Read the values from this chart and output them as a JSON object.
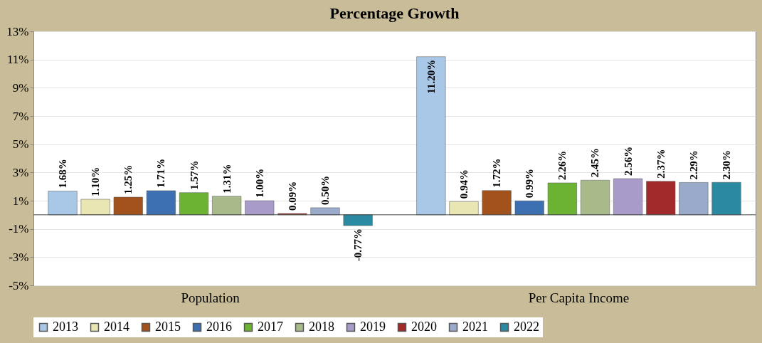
{
  "chart_data": {
    "type": "bar",
    "title": "Percentage Growth",
    "categories": [
      "Population",
      "Per Capita Income"
    ],
    "series": [
      {
        "name": "2013",
        "color": "#a9c7e6",
        "values": [
          1.68,
          11.2
        ],
        "value_labels": [
          "1.68%",
          "11.20%"
        ]
      },
      {
        "name": "2014",
        "color": "#e9e6b4",
        "values": [
          1.1,
          0.94
        ],
        "value_labels": [
          "1.10%",
          "0.94%"
        ]
      },
      {
        "name": "2015",
        "color": "#a4521c",
        "values": [
          1.25,
          1.72
        ],
        "value_labels": [
          "1.25%",
          "1.72%"
        ]
      },
      {
        "name": "2016",
        "color": "#3d6fb3",
        "values": [
          1.71,
          0.99
        ],
        "value_labels": [
          "1.71%",
          "0.99%"
        ]
      },
      {
        "name": "2017",
        "color": "#6cb233",
        "values": [
          1.57,
          2.26
        ],
        "value_labels": [
          "1.57%",
          "2.26%"
        ]
      },
      {
        "name": "2018",
        "color": "#a9ba8a",
        "values": [
          1.31,
          2.45
        ],
        "value_labels": [
          "1.31%",
          "2.45%"
        ]
      },
      {
        "name": "2019",
        "color": "#a99bc9",
        "values": [
          1.0,
          2.56
        ],
        "value_labels": [
          "1.00%",
          "2.56%"
        ]
      },
      {
        "name": "2020",
        "color": "#a22a2a",
        "values": [
          0.09,
          2.37
        ],
        "value_labels": [
          "0.09%",
          "2.37%"
        ]
      },
      {
        "name": "2021",
        "color": "#9aaacb",
        "values": [
          0.5,
          2.29
        ],
        "value_labels": [
          "0.50%",
          "2.29%"
        ]
      },
      {
        "name": "2022",
        "color": "#2a8aa2",
        "values": [
          -0.77,
          2.3
        ],
        "value_labels": [
          "-0.77%",
          "2.30%"
        ]
      }
    ],
    "ylim": [
      -5,
      13
    ],
    "yticks": [
      {
        "value": -5,
        "label": "-5%"
      },
      {
        "value": -3,
        "label": "-3%"
      },
      {
        "value": -1,
        "label": "-1%"
      },
      {
        "value": 1,
        "label": "1%"
      },
      {
        "value": 3,
        "label": "3%"
      },
      {
        "value": 5,
        "label": "5%"
      },
      {
        "value": 7,
        "label": "7%"
      },
      {
        "value": 9,
        "label": "9%"
      },
      {
        "value": 11,
        "label": "11%"
      },
      {
        "value": 13,
        "label": "13%"
      }
    ],
    "grid": "y",
    "legend": "bottom"
  }
}
